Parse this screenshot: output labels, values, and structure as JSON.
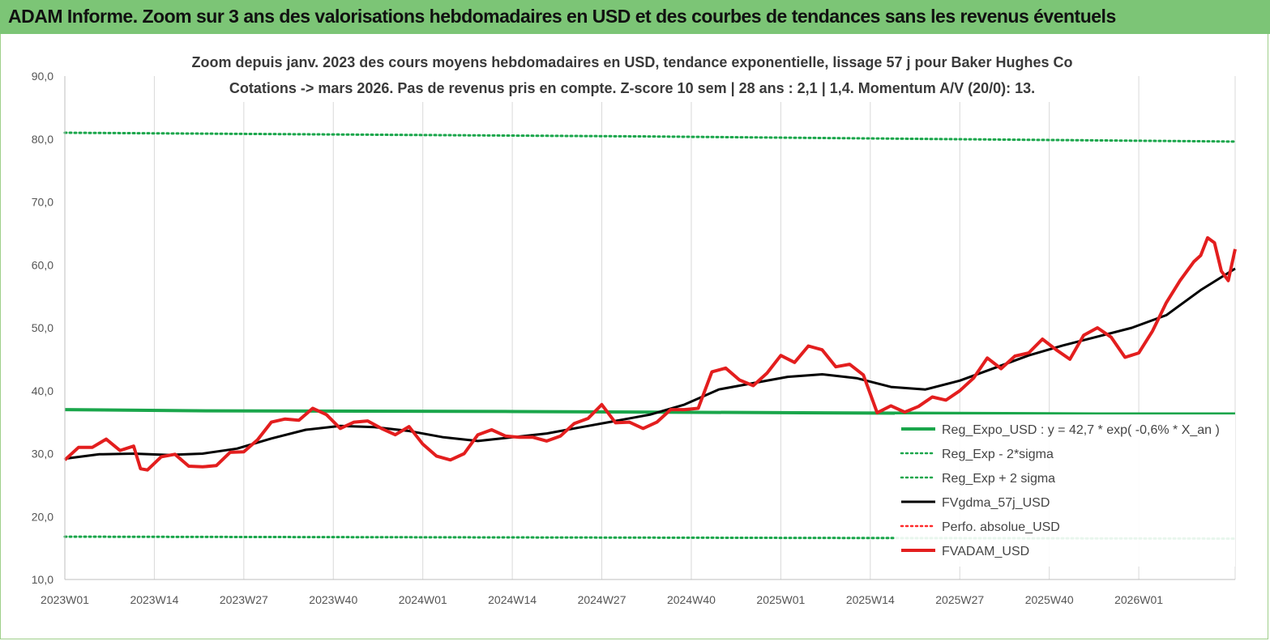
{
  "header": {
    "title": "ADAM Informe. Zoom sur 3 ans des valorisations hebdomadaires en USD et des courbes de tendances sans les revenus éventuels"
  },
  "chart_data": {
    "type": "line",
    "title_line1": "Zoom depuis janv. 2023 des cours moyens hebdomadaires en USD, tendance exponentielle, lissage 57 j pour Baker Hughes Co",
    "title_line2": "Cotations -> mars 2026. Pas de revenus pris en compte. Z-score 10 sem | 28 ans : 2,1 | 1,4. Momentum A/V (20/0): 13.",
    "ylim": [
      10,
      90
    ],
    "y_ticks": [
      "10,0",
      "20,0",
      "30,0",
      "40,0",
      "50,0",
      "60,0",
      "70,0",
      "80,0",
      "90,0"
    ],
    "x_ticks": [
      "2023W01",
      "2023W14",
      "2023W27",
      "2023W40",
      "2024W01",
      "2024W14",
      "2024W27",
      "2024W40",
      "2025W01",
      "2025W14",
      "2025W27",
      "2025W40",
      "2026W01"
    ],
    "x_tick_index": [
      0,
      13,
      26,
      39,
      52,
      65,
      78,
      91,
      104,
      117,
      130,
      143,
      156
    ],
    "x_max_index": 170,
    "grid": "vertical",
    "legend_position": "bottom-right",
    "series": [
      {
        "name": "Reg_Expo_USD : y = 42,7 * exp( -0,6% * X_an )",
        "color": "#1aa64b",
        "style": "solid-thick",
        "x": [
          0,
          21,
          64,
          107,
          150,
          170
        ],
        "values": [
          37.0,
          36.8,
          36.7,
          36.5,
          36.3,
          36.3
        ]
      },
      {
        "name": "Reg_Exp - 2*sigma",
        "color": "#1aa64b",
        "style": "dotted",
        "x": [
          0,
          170
        ],
        "values": [
          16.8,
          16.5
        ]
      },
      {
        "name": "Reg_Exp + 2 sigma",
        "color": "#1aa64b",
        "style": "dotted",
        "x": [
          0,
          42,
          85,
          127,
          170
        ],
        "values": [
          81.0,
          80.7,
          80.4,
          80.0,
          79.6
        ]
      },
      {
        "name": "FVgdma_57j_USD",
        "color": "#000000",
        "style": "solid",
        "x": [
          0,
          5,
          10,
          15,
          20,
          25,
          30,
          35,
          40,
          45,
          50,
          55,
          60,
          65,
          70,
          75,
          80,
          85,
          90,
          95,
          100,
          105,
          110,
          115,
          120,
          125,
          130,
          135,
          140,
          145,
          150,
          155,
          160,
          165,
          170
        ],
        "values": [
          29.2,
          29.9,
          30.0,
          29.8,
          30.0,
          30.8,
          32.4,
          33.8,
          34.4,
          34.2,
          33.6,
          32.6,
          32.0,
          32.6,
          33.2,
          34.2,
          35.2,
          36.2,
          37.8,
          40.2,
          41.2,
          42.2,
          42.6,
          42.0,
          40.6,
          40.2,
          41.6,
          43.6,
          45.6,
          47.2,
          48.6,
          50.0,
          52.0,
          56.0,
          59.4
        ]
      },
      {
        "name": "Perfo. absolue_USD",
        "color": "#ff2a2a",
        "style": "dotted"
      },
      {
        "name": "FVADAM_USD",
        "color": "#e31e1e",
        "style": "solid-thick",
        "x": [
          0,
          2,
          4,
          6,
          8,
          10,
          11,
          12,
          14,
          16,
          18,
          20,
          22,
          24,
          26,
          28,
          30,
          32,
          34,
          36,
          38,
          40,
          42,
          44,
          46,
          48,
          50,
          52,
          54,
          56,
          58,
          60,
          62,
          64,
          66,
          68,
          70,
          72,
          74,
          76,
          78,
          80,
          82,
          84,
          86,
          88,
          90,
          92,
          94,
          96,
          98,
          100,
          102,
          104,
          106,
          108,
          110,
          112,
          114,
          116,
          118,
          120,
          122,
          124,
          126,
          128,
          130,
          132,
          134,
          136,
          138,
          140,
          142,
          144,
          146,
          148,
          150,
          152,
          154,
          156,
          158,
          160,
          162,
          164,
          165,
          166,
          167,
          168,
          169,
          170
        ],
        "values": [
          29.0,
          31.0,
          31.0,
          32.3,
          30.5,
          31.2,
          27.6,
          27.4,
          29.5,
          29.9,
          28.0,
          27.9,
          28.1,
          30.2,
          30.3,
          32.2,
          35.0,
          35.5,
          35.3,
          37.2,
          36.2,
          34.0,
          35.0,
          35.2,
          34.0,
          33.0,
          34.3,
          31.5,
          29.6,
          29.0,
          30.0,
          33.0,
          33.8,
          32.8,
          32.6,
          32.6,
          32.0,
          32.8,
          34.8,
          35.6,
          37.8,
          34.9,
          35.0,
          34.0,
          35.0,
          37.0,
          37.0,
          37.2,
          43.0,
          43.6,
          41.7,
          40.8,
          42.8,
          45.6,
          44.5,
          47.1,
          46.5,
          43.8,
          44.2,
          42.5,
          36.5,
          37.6,
          36.6,
          37.5,
          39.0,
          38.5,
          40.0,
          42.0,
          45.2,
          43.5,
          45.5,
          46.0,
          48.2,
          46.5,
          45.0,
          48.8,
          50.0,
          48.5,
          45.3,
          46.0,
          49.5,
          54.0,
          57.5,
          60.5,
          61.5,
          64.3,
          63.5,
          59.0,
          57.5,
          62.5
        ]
      }
    ]
  }
}
